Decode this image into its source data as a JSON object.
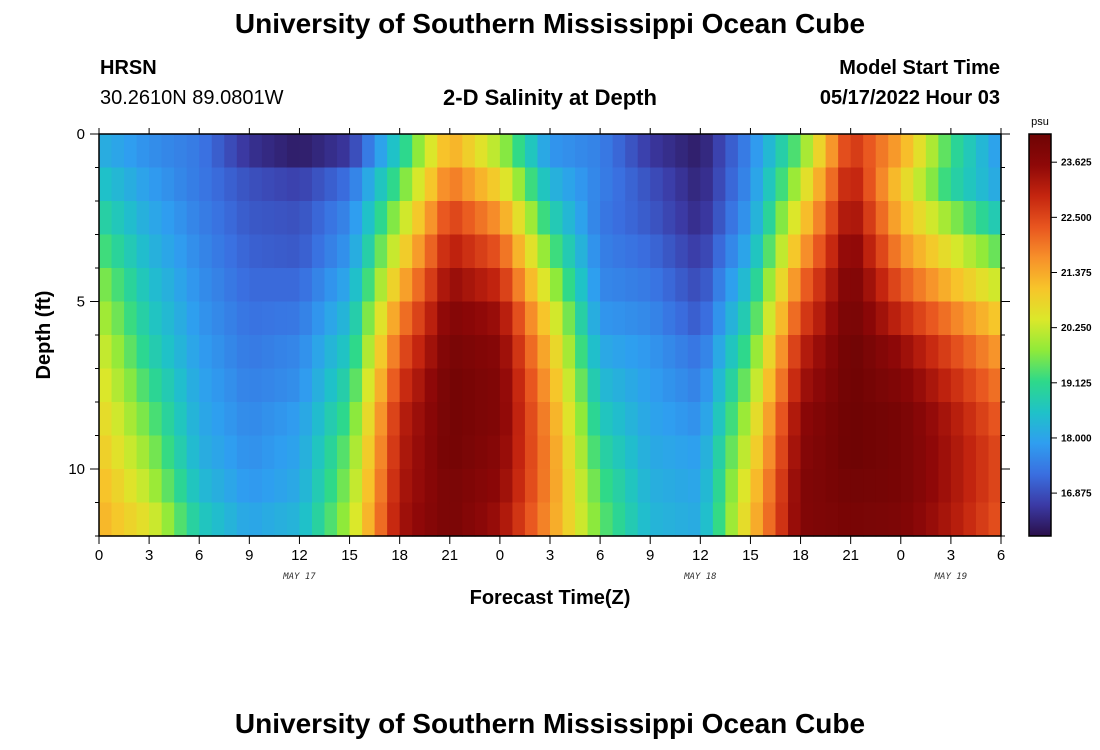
{
  "header": {
    "title": "University of Southern Mississippi Ocean Cube",
    "station": "HRSN",
    "coords": "30.2610N  89.0801W",
    "plot_title": "2-D Salinity at Depth",
    "model_label": "Model Start Time",
    "model_time": "05/17/2022 Hour 03"
  },
  "footer": {
    "title": "University of Southern Mississippi Ocean Cube"
  },
  "chart_data": {
    "type": "heatmap",
    "title": "2-D Salinity at Depth",
    "xlabel": "Forecast Time(Z)",
    "ylabel": "Depth (ft)",
    "x_tick_labels": [
      "0",
      "3",
      "6",
      "9",
      "12",
      "15",
      "18",
      "21",
      "0",
      "3",
      "6",
      "9",
      "12",
      "15",
      "18",
      "21",
      "0",
      "3",
      "6"
    ],
    "date_labels": [
      {
        "label": "MAY 17",
        "at_hour": 12
      },
      {
        "label": "MAY 18",
        "at_hour": 36
      },
      {
        "label": "MAY 19",
        "at_hour": 51
      }
    ],
    "x_range_hours": [
      0,
      54
    ],
    "y_tick_labels": [
      "0",
      "5",
      "10"
    ],
    "y_range_ft": [
      0,
      12
    ],
    "colorbar": {
      "unit": "psu",
      "ticks": [
        "23.625",
        "22.500",
        "21.375",
        "20.250",
        "19.125",
        "18.000",
        "16.875"
      ],
      "range": [
        16.0,
        24.2
      ],
      "colors": [
        "#2a0f4a",
        "#3b3aa5",
        "#3a6fe0",
        "#2f9ef0",
        "#1fc2c8",
        "#2ed98a",
        "#8fea3a",
        "#dbe82a",
        "#f7c52a",
        "#f7902a",
        "#e8551f",
        "#c4250f",
        "#8e0808",
        "#6e0404"
      ]
    },
    "series": [
      {
        "hour": 0,
        "values": [
          18.2,
          18.6,
          19.0,
          19.4,
          19.8,
          20.1,
          20.4,
          20.6,
          20.8,
          21.0,
          21.2,
          21.3
        ]
      },
      {
        "hour": 3,
        "values": [
          17.7,
          17.9,
          18.1,
          18.3,
          18.5,
          18.7,
          18.9,
          19.2,
          19.5,
          19.8,
          20.1,
          20.5
        ]
      },
      {
        "hour": 6,
        "values": [
          17.4,
          17.4,
          17.5,
          17.6,
          17.7,
          17.8,
          17.9,
          18.0,
          18.1,
          18.2,
          18.4,
          18.7
        ]
      },
      {
        "hour": 9,
        "values": [
          16.5,
          16.9,
          17.0,
          17.1,
          17.2,
          17.3,
          17.4,
          17.5,
          17.6,
          17.7,
          17.8,
          18.0
        ]
      },
      {
        "hour": 12,
        "values": [
          16.2,
          16.7,
          16.9,
          17.0,
          17.2,
          17.4,
          17.6,
          17.7,
          17.9,
          18.0,
          18.1,
          18.3
        ]
      },
      {
        "hour": 15,
        "values": [
          16.6,
          17.3,
          17.6,
          17.8,
          18.1,
          18.4,
          18.7,
          19.0,
          19.3,
          19.6,
          19.8,
          20.0
        ]
      },
      {
        "hour": 18,
        "values": [
          18.8,
          19.4,
          20.0,
          20.6,
          21.2,
          21.8,
          22.3,
          22.7,
          23.0,
          23.1,
          23.2,
          23.3
        ]
      },
      {
        "hour": 21,
        "values": [
          21.4,
          22.0,
          22.6,
          23.1,
          23.5,
          23.8,
          24.0,
          24.1,
          24.1,
          24.1,
          24.0,
          24.0
        ]
      },
      {
        "hour": 24,
        "values": [
          20.0,
          20.8,
          21.6,
          22.3,
          22.9,
          23.4,
          23.7,
          23.8,
          23.8,
          23.7,
          23.6,
          23.4
        ]
      },
      {
        "hour": 27,
        "values": [
          17.8,
          18.3,
          18.9,
          19.5,
          20.1,
          20.7,
          21.1,
          21.4,
          21.6,
          21.7,
          21.7,
          21.6
        ]
      },
      {
        "hour": 30,
        "values": [
          17.5,
          17.5,
          17.4,
          17.5,
          17.6,
          17.8,
          18.1,
          18.4,
          18.7,
          19.0,
          19.3,
          19.5
        ]
      },
      {
        "hour": 33,
        "values": [
          16.6,
          16.9,
          17.0,
          17.2,
          17.4,
          17.6,
          17.8,
          17.9,
          18.0,
          18.1,
          18.2,
          18.3
        ]
      },
      {
        "hour": 36,
        "values": [
          16.2,
          16.3,
          16.4,
          16.6,
          16.8,
          17.0,
          17.3,
          17.5,
          17.7,
          17.9,
          18.0,
          18.1
        ]
      },
      {
        "hour": 39,
        "values": [
          17.6,
          17.7,
          17.9,
          18.2,
          18.6,
          19.0,
          19.4,
          19.8,
          20.2,
          20.5,
          20.8,
          21.0
        ]
      },
      {
        "hour": 42,
        "values": [
          19.6,
          20.2,
          20.8,
          21.4,
          22.0,
          22.5,
          23.0,
          23.3,
          23.6,
          23.7,
          23.8,
          23.8
        ]
      },
      {
        "hour": 45,
        "values": [
          22.8,
          23.2,
          23.5,
          23.8,
          24.0,
          24.1,
          24.2,
          24.2,
          24.2,
          24.2,
          24.1,
          24.0
        ]
      },
      {
        "hour": 48,
        "values": [
          21.4,
          20.9,
          21.2,
          21.7,
          22.3,
          22.9,
          23.5,
          23.8,
          24.0,
          24.0,
          24.0,
          23.9
        ]
      },
      {
        "hour": 51,
        "values": [
          19.2,
          19.0,
          19.8,
          20.5,
          21.2,
          21.9,
          22.5,
          22.9,
          23.2,
          23.3,
          23.3,
          23.2
        ]
      },
      {
        "hour": 54,
        "values": [
          17.8,
          18.0,
          18.6,
          19.4,
          20.2,
          20.9,
          21.5,
          21.9,
          22.2,
          22.4,
          22.4,
          22.3
        ]
      }
    ]
  }
}
